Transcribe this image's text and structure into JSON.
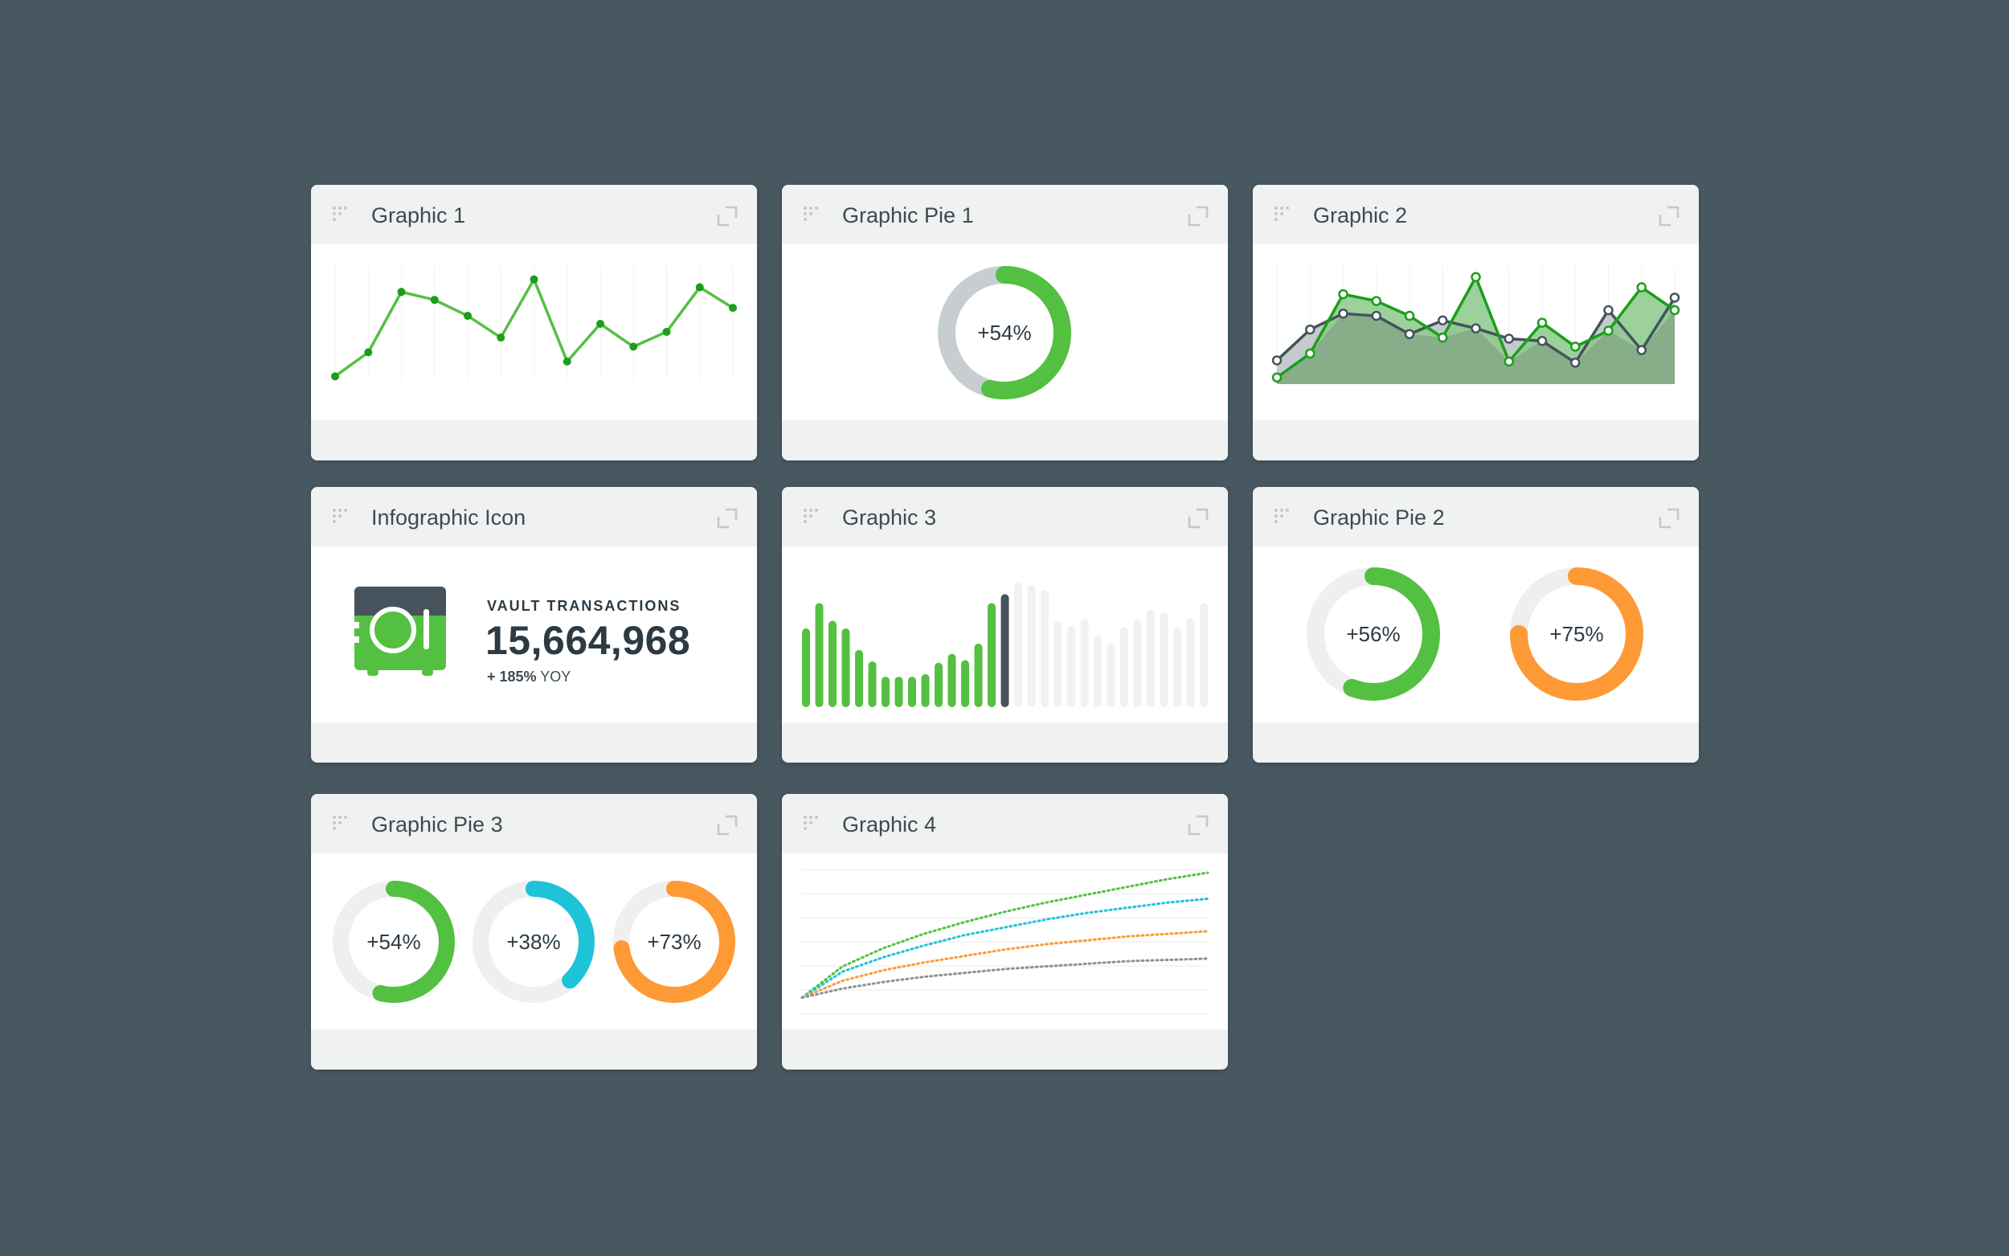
{
  "colors": {
    "background": "#485861",
    "green": "#54c041",
    "dark_green": "#1a9e1a",
    "gray": "#c7ced2",
    "track": "#eeefef",
    "orange": "#fd9a35",
    "cyan": "#1ec3d8",
    "slate": "#46535c"
  },
  "icons": {
    "drag": "drag-dots-icon",
    "expand": "expand-corner-icon",
    "vault": "vault-safe-icon"
  },
  "cards": {
    "graphic1": {
      "title": "Graphic 1"
    },
    "pie1": {
      "title": "Graphic Pie 1"
    },
    "graphic2": {
      "title": "Graphic 2"
    },
    "infographic": {
      "title": "Infographic Icon",
      "label": "VAULT TRANSACTIONS",
      "value": "15,664,968",
      "change_value": "+ 185%",
      "change_suffix": "YOY"
    },
    "graphic3": {
      "title": "Graphic 3"
    },
    "pie2": {
      "title": "Graphic Pie 2"
    },
    "pie3": {
      "title": "Graphic Pie 3"
    },
    "graphic4": {
      "title": "Graphic 4"
    }
  },
  "chart_data": [
    {
      "id": "graphic1",
      "type": "line",
      "grid": true,
      "ylim": [
        0,
        100
      ],
      "series": [
        {
          "values": [
            4,
            25,
            78,
            71,
            57,
            38,
            89,
            17,
            50,
            30,
            43,
            82,
            64
          ],
          "color": "#54c041"
        }
      ]
    },
    {
      "id": "pie1",
      "type": "pie",
      "slices": [
        {
          "label": "+54%",
          "value": 54,
          "color": "#54c041"
        }
      ]
    },
    {
      "id": "graphic2",
      "type": "area",
      "grid": true,
      "ylim": [
        0,
        100
      ],
      "series": [
        {
          "values": [
            18,
            45,
            59,
            57,
            41,
            53,
            46,
            37,
            35,
            16,
            62,
            27,
            73
          ],
          "color": "#46535c"
        },
        {
          "values": [
            3,
            24,
            76,
            70,
            57,
            38,
            91,
            17,
            51,
            30,
            44,
            82,
            62
          ],
          "color": "#1a9e1a"
        }
      ]
    },
    {
      "id": "graphic3",
      "type": "bar",
      "ylim": [
        0,
        100
      ],
      "highlight_index": 15,
      "highlight_color": "#46535c",
      "colored_through": 14,
      "values": [
        62,
        82,
        68,
        62,
        45,
        36,
        24,
        24,
        24,
        26,
        35,
        42,
        37,
        50,
        82,
        89,
        98,
        96,
        92,
        68,
        64,
        69,
        56,
        50,
        63,
        69,
        77,
        75,
        63,
        70,
        82
      ]
    },
    {
      "id": "pie2",
      "type": "pie",
      "slices": [
        {
          "label": "+56%",
          "value": 56,
          "color": "#54c041"
        },
        {
          "label": "+75%",
          "value": 75,
          "color": "#fd9a35"
        }
      ]
    },
    {
      "id": "pie3",
      "type": "pie",
      "slices": [
        {
          "label": "+54%",
          "value": 54,
          "color": "#54c041"
        },
        {
          "label": "+38%",
          "value": 38,
          "color": "#1ec3d8"
        },
        {
          "label": "+73%",
          "value": 73,
          "color": "#fd9a35"
        }
      ]
    },
    {
      "id": "graphic4",
      "type": "line",
      "grid": true,
      "ylim": [
        0,
        100
      ],
      "style": "dotted",
      "x": [
        0,
        10,
        20,
        30,
        40,
        50,
        60,
        70,
        80,
        90,
        100
      ],
      "series": [
        {
          "values": [
            4,
            28,
            42,
            53,
            62,
            70,
            77,
            83,
            89,
            95,
            100
          ],
          "color": "#54c041"
        },
        {
          "values": [
            4,
            24,
            35,
            44,
            52,
            58,
            64,
            69,
            73,
            77,
            80
          ],
          "color": "#1ec3d8"
        },
        {
          "values": [
            4,
            17,
            25,
            31,
            36,
            41,
            45,
            48,
            51,
            53,
            55
          ],
          "color": "#fd9a35"
        },
        {
          "values": [
            4,
            11,
            16,
            20,
            23,
            26,
            28,
            30,
            32,
            33,
            34
          ],
          "color": "#8a9399"
        }
      ]
    }
  ]
}
